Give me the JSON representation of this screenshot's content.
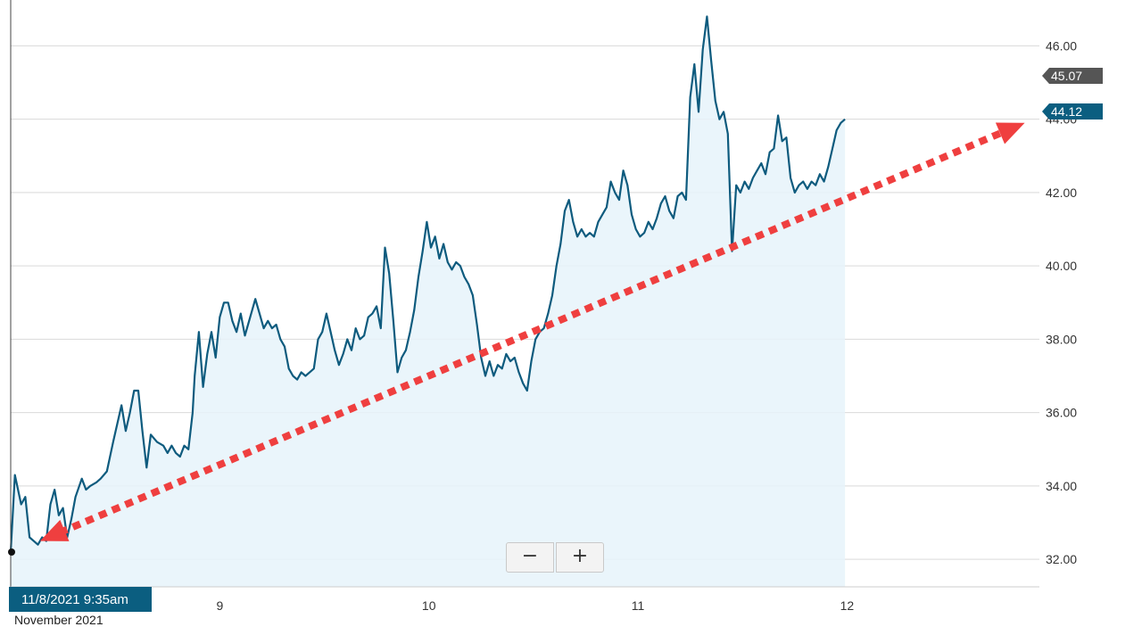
{
  "chart_data": {
    "type": "area",
    "title": "",
    "xlabel": "",
    "ylabel": "",
    "ylim": [
      31.25,
      47.25
    ],
    "yticks": [
      32,
      34,
      36,
      38,
      40,
      42,
      44,
      46
    ],
    "ytick_labels": [
      "32.00",
      "34.00",
      "36.00",
      "38.00",
      "40.00",
      "42.00",
      "44.00",
      "46.00"
    ],
    "grid": true,
    "x_range_days": [
      8.0,
      12.92
    ],
    "xticks": [
      {
        "day": 9.0,
        "label": "9"
      },
      {
        "day": 10.0,
        "label": "10"
      },
      {
        "day": 11.0,
        "label": "11"
      },
      {
        "day": 12.0,
        "label": "12"
      }
    ],
    "period_label": "November 2021",
    "crosshair_label": "11/8/2021 9:35am",
    "current_value": {
      "label": "44.12",
      "value": 44.12,
      "color": "#0b5e80"
    },
    "previous_value": {
      "label": "45.07",
      "value": 45.07,
      "color": "#555555"
    },
    "series": [
      {
        "color": "#0e5b7e",
        "points": [
          [
            8.0,
            32.2
          ],
          [
            8.02,
            34.3
          ],
          [
            8.05,
            33.5
          ],
          [
            8.07,
            33.7
          ],
          [
            8.09,
            32.6
          ],
          [
            8.11,
            32.5
          ],
          [
            8.13,
            32.4
          ],
          [
            8.15,
            32.6
          ],
          [
            8.17,
            32.5
          ],
          [
            8.19,
            33.5
          ],
          [
            8.21,
            33.9
          ],
          [
            8.23,
            33.2
          ],
          [
            8.25,
            33.4
          ],
          [
            8.27,
            32.6
          ],
          [
            8.29,
            33.1
          ],
          [
            8.31,
            33.7
          ],
          [
            8.34,
            34.2
          ],
          [
            8.36,
            33.9
          ],
          [
            8.38,
            34.0
          ],
          [
            8.41,
            34.1
          ],
          [
            8.43,
            34.2
          ],
          [
            8.46,
            34.4
          ],
          [
            8.49,
            35.2
          ],
          [
            8.51,
            35.7
          ],
          [
            8.53,
            36.2
          ],
          [
            8.55,
            35.5
          ],
          [
            8.57,
            36.0
          ],
          [
            8.59,
            36.6
          ],
          [
            8.61,
            36.6
          ],
          [
            8.63,
            35.5
          ],
          [
            8.65,
            34.5
          ],
          [
            8.67,
            35.4
          ],
          [
            8.7,
            35.2
          ],
          [
            8.73,
            35.1
          ],
          [
            8.75,
            34.9
          ],
          [
            8.77,
            35.1
          ],
          [
            8.79,
            34.9
          ],
          [
            8.81,
            34.8
          ],
          [
            8.83,
            35.1
          ],
          [
            8.85,
            35.0
          ],
          [
            8.87,
            36.0
          ],
          [
            8.88,
            37.0
          ],
          [
            8.9,
            38.2
          ],
          [
            8.92,
            36.7
          ],
          [
            8.94,
            37.6
          ],
          [
            8.96,
            38.2
          ],
          [
            8.98,
            37.5
          ],
          [
            9.0,
            38.6
          ],
          [
            9.02,
            39.0
          ],
          [
            9.04,
            39.0
          ],
          [
            9.06,
            38.5
          ],
          [
            9.08,
            38.2
          ],
          [
            9.1,
            38.7
          ],
          [
            9.12,
            38.1
          ],
          [
            9.14,
            38.5
          ],
          [
            9.17,
            39.1
          ],
          [
            9.19,
            38.7
          ],
          [
            9.21,
            38.3
          ],
          [
            9.23,
            38.5
          ],
          [
            9.25,
            38.3
          ],
          [
            9.27,
            38.4
          ],
          [
            9.29,
            38.0
          ],
          [
            9.31,
            37.8
          ],
          [
            9.33,
            37.2
          ],
          [
            9.35,
            37.0
          ],
          [
            9.37,
            36.9
          ],
          [
            9.39,
            37.1
          ],
          [
            9.41,
            37.0
          ],
          [
            9.43,
            37.1
          ],
          [
            9.45,
            37.2
          ],
          [
            9.47,
            38.0
          ],
          [
            9.49,
            38.2
          ],
          [
            9.51,
            38.7
          ],
          [
            9.53,
            38.2
          ],
          [
            9.55,
            37.7
          ],
          [
            9.57,
            37.3
          ],
          [
            9.59,
            37.6
          ],
          [
            9.61,
            38.0
          ],
          [
            9.63,
            37.7
          ],
          [
            9.65,
            38.3
          ],
          [
            9.67,
            38.0
          ],
          [
            9.69,
            38.1
          ],
          [
            9.71,
            38.6
          ],
          [
            9.73,
            38.7
          ],
          [
            9.75,
            38.9
          ],
          [
            9.77,
            38.3
          ],
          [
            9.79,
            40.5
          ],
          [
            9.81,
            39.8
          ],
          [
            9.83,
            38.5
          ],
          [
            9.85,
            37.1
          ],
          [
            9.87,
            37.5
          ],
          [
            9.89,
            37.7
          ],
          [
            9.91,
            38.2
          ],
          [
            9.93,
            38.8
          ],
          [
            9.95,
            39.7
          ],
          [
            9.97,
            40.4
          ],
          [
            9.99,
            41.2
          ],
          [
            10.01,
            40.5
          ],
          [
            10.03,
            40.8
          ],
          [
            10.05,
            40.2
          ],
          [
            10.07,
            40.6
          ],
          [
            10.09,
            40.1
          ],
          [
            10.11,
            39.9
          ],
          [
            10.13,
            40.1
          ],
          [
            10.15,
            40.0
          ],
          [
            10.17,
            39.7
          ],
          [
            10.19,
            39.5
          ],
          [
            10.21,
            39.2
          ],
          [
            10.23,
            38.4
          ],
          [
            10.25,
            37.5
          ],
          [
            10.27,
            37.0
          ],
          [
            10.29,
            37.4
          ],
          [
            10.31,
            37.0
          ],
          [
            10.33,
            37.3
          ],
          [
            10.35,
            37.2
          ],
          [
            10.37,
            37.6
          ],
          [
            10.39,
            37.4
          ],
          [
            10.41,
            37.5
          ],
          [
            10.43,
            37.1
          ],
          [
            10.45,
            36.8
          ],
          [
            10.47,
            36.6
          ],
          [
            10.49,
            37.4
          ],
          [
            10.51,
            38.0
          ],
          [
            10.53,
            38.2
          ],
          [
            10.55,
            38.3
          ],
          [
            10.57,
            38.7
          ],
          [
            10.59,
            39.2
          ],
          [
            10.61,
            40.0
          ],
          [
            10.63,
            40.6
          ],
          [
            10.65,
            41.5
          ],
          [
            10.67,
            41.8
          ],
          [
            10.69,
            41.2
          ],
          [
            10.71,
            40.8
          ],
          [
            10.73,
            41.0
          ],
          [
            10.75,
            40.8
          ],
          [
            10.77,
            40.9
          ],
          [
            10.79,
            40.8
          ],
          [
            10.81,
            41.2
          ],
          [
            10.83,
            41.4
          ],
          [
            10.85,
            41.6
          ],
          [
            10.87,
            42.3
          ],
          [
            10.89,
            42.0
          ],
          [
            10.91,
            41.8
          ],
          [
            10.93,
            42.6
          ],
          [
            10.95,
            42.2
          ],
          [
            10.97,
            41.4
          ],
          [
            10.99,
            41.0
          ],
          [
            11.01,
            40.8
          ],
          [
            11.03,
            40.9
          ],
          [
            11.05,
            41.2
          ],
          [
            11.07,
            41.0
          ],
          [
            11.09,
            41.3
          ],
          [
            11.11,
            41.7
          ],
          [
            11.13,
            41.9
          ],
          [
            11.15,
            41.5
          ],
          [
            11.17,
            41.3
          ],
          [
            11.19,
            41.9
          ],
          [
            11.21,
            42.0
          ],
          [
            11.23,
            41.8
          ],
          [
            11.25,
            44.6
          ],
          [
            11.27,
            45.5
          ],
          [
            11.29,
            44.2
          ],
          [
            11.31,
            45.9
          ],
          [
            11.33,
            46.8
          ],
          [
            11.35,
            45.6
          ],
          [
            11.37,
            44.5
          ],
          [
            11.39,
            44.0
          ],
          [
            11.41,
            44.2
          ],
          [
            11.43,
            43.6
          ],
          [
            11.45,
            40.4
          ],
          [
            11.47,
            42.2
          ],
          [
            11.49,
            42.0
          ],
          [
            11.51,
            42.3
          ],
          [
            11.53,
            42.1
          ],
          [
            11.55,
            42.4
          ],
          [
            11.57,
            42.6
          ],
          [
            11.59,
            42.8
          ],
          [
            11.61,
            42.5
          ],
          [
            11.63,
            43.1
          ],
          [
            11.65,
            43.2
          ],
          [
            11.67,
            44.1
          ],
          [
            11.69,
            43.4
          ],
          [
            11.71,
            43.5
          ],
          [
            11.73,
            42.4
          ],
          [
            11.75,
            42.0
          ],
          [
            11.77,
            42.2
          ],
          [
            11.79,
            42.3
          ],
          [
            11.81,
            42.1
          ],
          [
            11.83,
            42.3
          ],
          [
            11.85,
            42.2
          ],
          [
            11.87,
            42.5
          ],
          [
            11.89,
            42.3
          ],
          [
            11.91,
            42.7
          ],
          [
            11.93,
            43.2
          ],
          [
            11.95,
            43.7
          ],
          [
            11.97,
            43.9
          ],
          [
            11.99,
            44.0
          ]
        ]
      }
    ],
    "annotations": [
      {
        "type": "dashed-arrow",
        "color": "#ef3f3f",
        "from": [
          8.14,
          32.5
        ],
        "to": [
          12.85,
          43.9
        ],
        "heads": "both"
      }
    ],
    "x_label_format": "series point x values are trading-time positions in days",
    "axis_line": {
      "color": "#444444"
    }
  },
  "controls": {
    "zoom_out_label": "−",
    "zoom_in_label": "+"
  }
}
